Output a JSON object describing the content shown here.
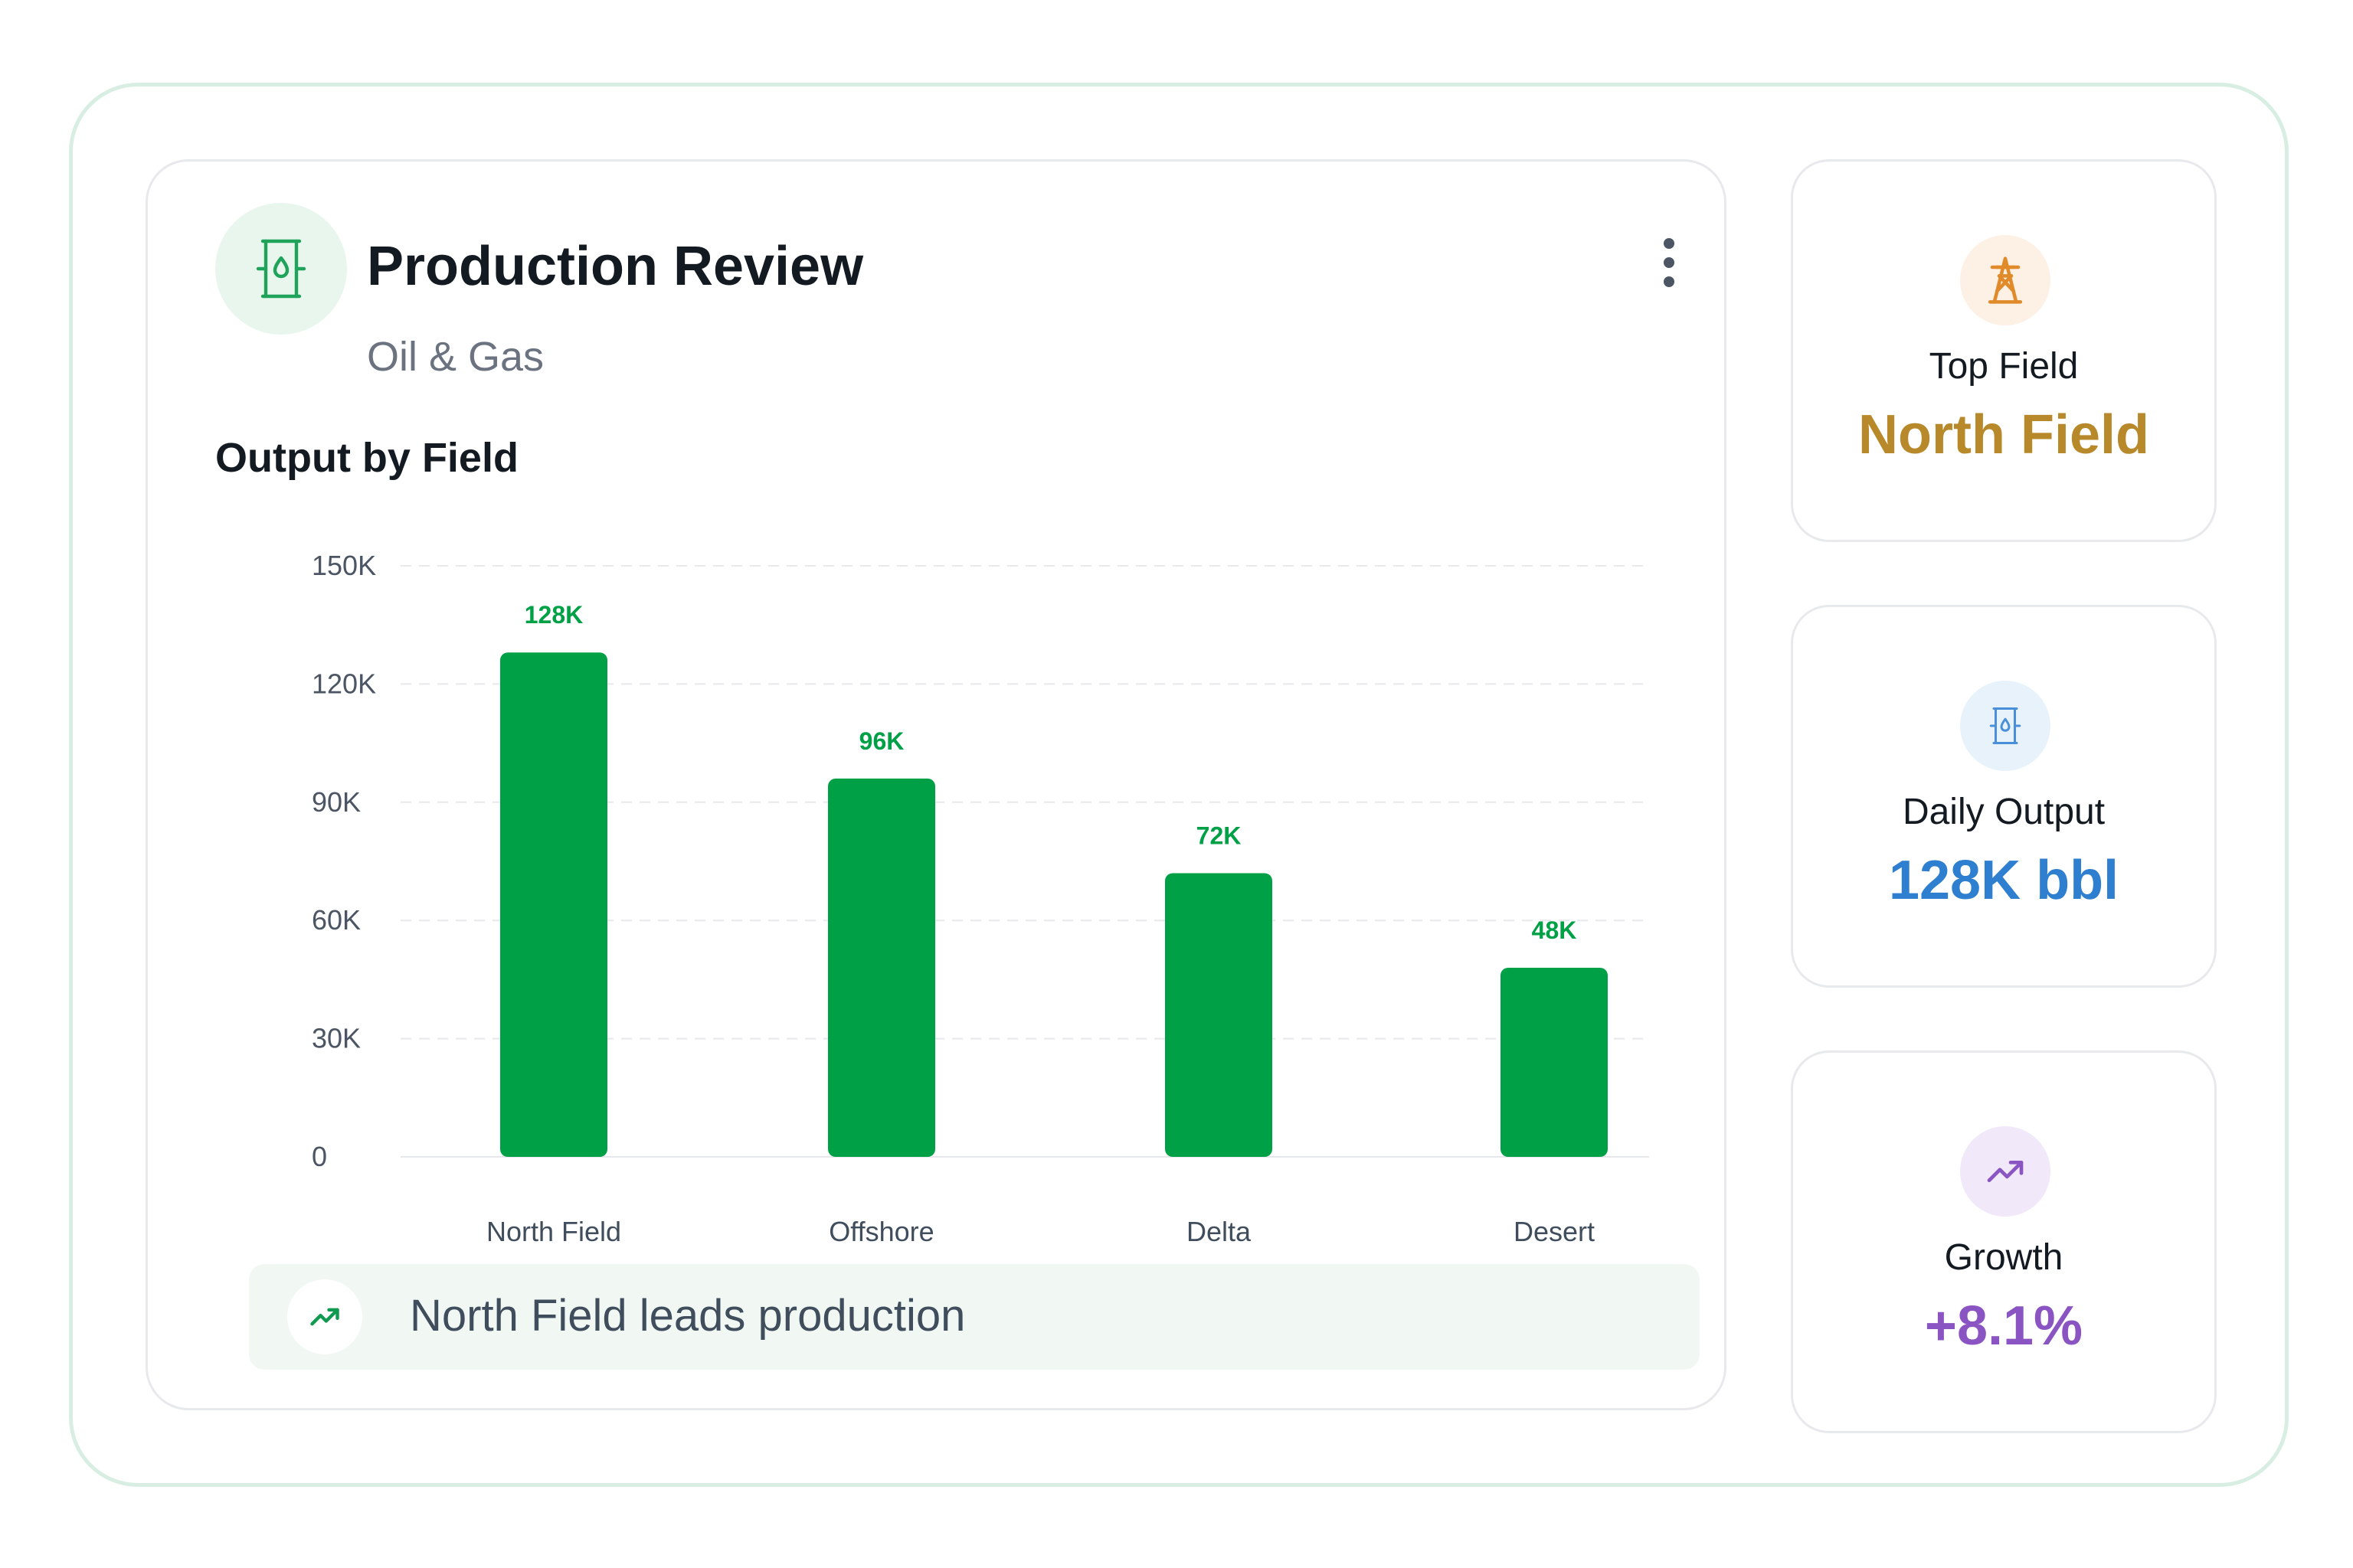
{
  "header": {
    "title": "Production Review",
    "subtitle": "Oil & Gas"
  },
  "chart_section": {
    "title": "Output by Field"
  },
  "chart_data": {
    "type": "bar",
    "categories": [
      "North Field",
      "Offshore",
      "Delta",
      "Desert"
    ],
    "values": [
      128000,
      96000,
      72000,
      48000
    ],
    "data_labels": [
      "128K",
      "96K",
      "72K",
      "48K"
    ],
    "yticks": [
      0,
      30000,
      60000,
      90000,
      120000,
      150000
    ],
    "ytick_labels": [
      "0",
      "30K",
      "60K",
      "90K",
      "120K",
      "150K"
    ],
    "ylim": [
      0,
      150000
    ],
    "grid": true,
    "bar_color": "#00a146",
    "label_color": "#00a146"
  },
  "banner": {
    "text": "North Field leads production",
    "icon": "trend-up-icon"
  },
  "stats": [
    {
      "label": "Top Field",
      "value": "North Field",
      "icon": "oil-derrick-icon",
      "color": "#b8892a",
      "icon_bg": "#fdf0e4",
      "icon_color": "#e08a2a"
    },
    {
      "label": "Daily Output",
      "value": "128K bbl",
      "icon": "oil-barrel-icon",
      "color": "#2f7fd0",
      "icon_bg": "#e8f2fb",
      "icon_color": "#4a90d9"
    },
    {
      "label": "Growth",
      "value": "+8.1%",
      "icon": "trend-up-icon",
      "color": "#8a55c2",
      "icon_bg": "#f1e8fa",
      "icon_color": "#8a55c2"
    }
  ]
}
